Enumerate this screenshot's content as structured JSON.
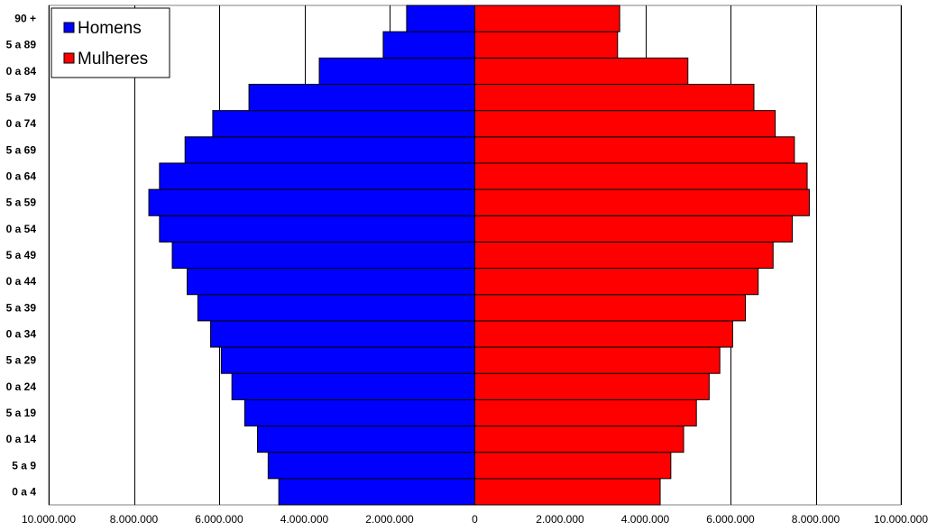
{
  "chart_data": {
    "type": "bar",
    "orientation": "horizontal",
    "layout": "population-pyramid",
    "categories": [
      "0 a 4",
      "5 a 9",
      "0 a 14",
      "5 a 19",
      "0 a 24",
      "5 a 29",
      "0 a 34",
      "5 a 39",
      "0 a 44",
      "5 a 49",
      "0 a 54",
      "5 a 59",
      "0 a 64",
      "5 a 69",
      "0 a 74",
      "5 a 79",
      "0 a 84",
      "5 a 89",
      "90 +"
    ],
    "series": [
      {
        "name": "Homens",
        "color": "#0000ff",
        "side": "left",
        "values": [
          4600000,
          4850000,
          5100000,
          5400000,
          5700000,
          5950000,
          6200000,
          6500000,
          6750000,
          7100000,
          7400000,
          7650000,
          7400000,
          6800000,
          6150000,
          5300000,
          3650000,
          2150000,
          1600000
        ]
      },
      {
        "name": "Mulheres",
        "color": "#ff0000",
        "side": "right",
        "values": [
          4350000,
          4600000,
          4900000,
          5200000,
          5500000,
          5750000,
          6050000,
          6350000,
          6650000,
          7000000,
          7450000,
          7850000,
          7800000,
          7500000,
          7050000,
          6550000,
          5000000,
          3350000,
          3400000
        ]
      }
    ],
    "xlim": [
      -10000000,
      10000000
    ],
    "xticks": [
      -10000000,
      -8000000,
      -6000000,
      -4000000,
      -2000000,
      0,
      2000000,
      4000000,
      6000000,
      8000000,
      10000000
    ],
    "xtick_labels": [
      "10.000.000",
      "8.000.000",
      "6.000.000",
      "4.000.000",
      "2.000.000",
      "0",
      "2.000.000",
      "4.000.000",
      "6.000.000",
      "8.000.000",
      "10.000.000"
    ],
    "grid": "vertical",
    "legend": {
      "position": "top-left",
      "entries": [
        "Homens",
        "Mulheres"
      ]
    },
    "title": "",
    "xlabel": "",
    "ylabel": ""
  }
}
